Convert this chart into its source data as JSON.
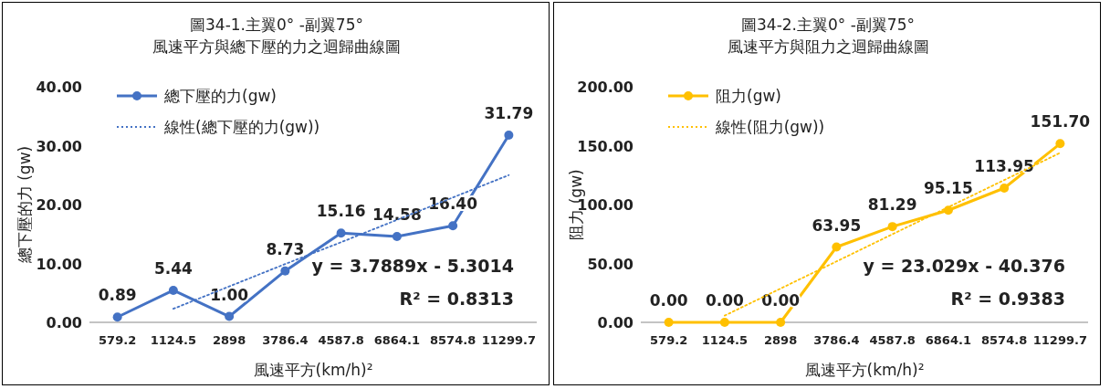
{
  "chart_data": [
    {
      "type": "line",
      "title": "圖34-1.主翼0° -副翼75°",
      "subtitle": "風速平方與總下壓的力之迴歸曲線圖",
      "xlabel": "風速平方(km/h)²",
      "ylabel": "總下壓的力 (gw)",
      "categories": [
        "579.2",
        "1124.5",
        "2898",
        "3786.4",
        "4587.8",
        "6864.1",
        "8574.8",
        "11299.7"
      ],
      "ylim": [
        0,
        40
      ],
      "yticks": [
        {
          "value": 0,
          "label": "0.00"
        },
        {
          "value": 10,
          "label": "10.00"
        },
        {
          "value": 20,
          "label": "20.00"
        },
        {
          "value": 30,
          "label": "30.00"
        },
        {
          "value": 40,
          "label": "40.00"
        }
      ],
      "legend": "top left",
      "grid": false,
      "series": [
        {
          "name": "總下壓的力(gw)",
          "color": "#4472c4",
          "marker": "circle",
          "line_style": "solid",
          "values": [
            0.89,
            5.44,
            1.0,
            8.73,
            15.16,
            14.58,
            16.4,
            31.79
          ],
          "value_labels": [
            "0.89",
            "5.44",
            "1.00",
            "8.73",
            "15.16",
            "14.58",
            "16.40",
            "31.79"
          ]
        },
        {
          "type": "line",
          "name": "線性(總下壓的力(gw))",
          "color": "#4472c4",
          "marker": "none",
          "line_style": "dotted",
          "values": [
            null,
            2.3,
            6.1,
            9.9,
            13.6,
            17.4,
            21.2,
            25.0
          ]
        }
      ],
      "annotations": [
        "y = 3.7889x - 5.3014",
        "R² = 0.8313"
      ]
    },
    {
      "type": "line",
      "title": "圖34-2.主翼0° -副翼75°",
      "subtitle": "風速平方與阻力之迴歸曲線圖",
      "xlabel": "風速平方(km/h)²",
      "ylabel": "阻力 (gw)",
      "categories": [
        "579.2",
        "1124.5",
        "2898",
        "3786.4",
        "4587.8",
        "6864.1",
        "8574.8",
        "11299.7"
      ],
      "ylim": [
        0,
        200
      ],
      "yticks": [
        {
          "value": 0,
          "label": "0.00"
        },
        {
          "value": 50,
          "label": "50.00"
        },
        {
          "value": 100,
          "label": "100.00"
        },
        {
          "value": 150,
          "label": "150.00"
        },
        {
          "value": 200,
          "label": "200.00"
        }
      ],
      "legend": "top left",
      "grid": false,
      "series": [
        {
          "name": "阻力(gw)",
          "color": "#ffc000",
          "marker": "circle",
          "line_style": "solid",
          "values": [
            0.0,
            0.0,
            0.0,
            63.95,
            81.29,
            95.15,
            113.95,
            151.7
          ],
          "value_labels": [
            "0.00",
            "0.00",
            "0.00",
            "63.95",
            "81.29",
            "95.15",
            "113.95",
            "151.70"
          ]
        },
        {
          "type": "line",
          "name": "線性(阻力(gw))",
          "color": "#ffc000",
          "marker": "none",
          "line_style": "dotted",
          "values": [
            null,
            5.7,
            28.7,
            51.7,
            74.8,
            97.8,
            120.8,
            143.9
          ]
        }
      ],
      "annotations": [
        "y = 23.029x - 40.376",
        "R² = 0.9383"
      ]
    }
  ]
}
